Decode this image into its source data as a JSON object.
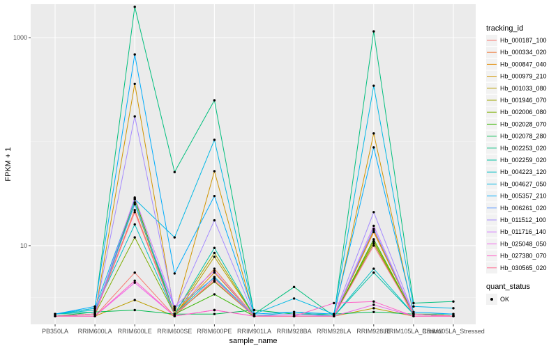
{
  "chart_data": {
    "type": "line",
    "title": "",
    "xlabel": "sample_name",
    "ylabel": "FPKM + 1",
    "y_scale": "log10",
    "ylim": [
      1.75,
      2100
    ],
    "y_ticks": [
      10,
      1000
    ],
    "y_tick_labels": [
      "10",
      "1000"
    ],
    "grid": true,
    "categories": [
      "PB350LA",
      "RRIM600LA",
      "RRIM600LE",
      "RRIM600SE",
      "RRIM600PE",
      "RRIM901LA",
      "RRIM928BA",
      "RRIM928LA",
      "RRIM928LE",
      "RRIM105LA_Control",
      "RRIM105LA_Stressed"
    ],
    "legend": {
      "position": "right",
      "title": "tracking_id",
      "title2": "quant_status",
      "status_label": "OK"
    },
    "series": [
      {
        "name": "Hb_000187_100",
        "color": "#F8766D",
        "values": [
          2.1,
          2.1,
          5.5,
          2.1,
          4.8,
          2.1,
          2.1,
          2.1,
          11.0,
          2.1,
          2.1
        ]
      },
      {
        "name": "Hb_000334_020",
        "color": "#EE8043",
        "values": [
          2.1,
          2.2,
          22.0,
          2.2,
          6.0,
          2.1,
          2.1,
          2.1,
          14.0,
          2.2,
          2.1
        ]
      },
      {
        "name": "Hb_000847_040",
        "color": "#E18A00",
        "values": [
          2.1,
          2.2,
          28.0,
          2.2,
          5.5,
          2.1,
          2.1,
          2.1,
          13.5,
          2.2,
          2.1
        ]
      },
      {
        "name": "Hb_000979_210",
        "color": "#D09400",
        "values": [
          2.1,
          2.2,
          360.0,
          2.2,
          52.0,
          2.1,
          2.1,
          2.1,
          120.0,
          2.2,
          2.1
        ]
      },
      {
        "name": "Hb_001033_080",
        "color": "#BA9E00",
        "values": [
          2.1,
          2.1,
          3.0,
          2.1,
          7.8,
          2.1,
          2.1,
          2.1,
          2.5,
          2.1,
          2.1
        ]
      },
      {
        "name": "Hb_001946_070",
        "color": "#9FA600",
        "values": [
          2.1,
          2.2,
          25.0,
          2.2,
          8.5,
          2.1,
          2.1,
          2.1,
          11.0,
          2.2,
          2.1
        ]
      },
      {
        "name": "Hb_002006_080",
        "color": "#7CAE00",
        "values": [
          2.1,
          2.2,
          12.0,
          2.2,
          4.5,
          2.1,
          2.1,
          2.1,
          10.5,
          2.2,
          2.1
        ]
      },
      {
        "name": "Hb_002028_070",
        "color": "#39B600",
        "values": [
          2.1,
          2.2,
          28.0,
          2.2,
          3.4,
          2.1,
          2.1,
          2.1,
          11.5,
          2.2,
          2.1
        ]
      },
      {
        "name": "Hb_002078_280",
        "color": "#00BB4E",
        "values": [
          2.1,
          2.3,
          2.4,
          2.2,
          2.2,
          2.4,
          2.2,
          2.2,
          2.3,
          2.2,
          2.2
        ]
      },
      {
        "name": "Hb_002253_020",
        "color": "#00BF7D",
        "values": [
          2.2,
          2.5,
          1980.0,
          51.0,
          250.0,
          2.2,
          4.0,
          2.1,
          1150.0,
          2.8,
          2.9
        ]
      },
      {
        "name": "Hb_002259_020",
        "color": "#00C1A3",
        "values": [
          2.2,
          2.3,
          26.0,
          2.2,
          9.5,
          2.1,
          2.1,
          2.1,
          5.5,
          2.2,
          2.1
        ]
      },
      {
        "name": "Hb_004223_120",
        "color": "#00BFC4",
        "values": [
          2.2,
          2.4,
          16.0,
          2.2,
          5.0,
          2.1,
          2.3,
          2.1,
          6.0,
          2.2,
          2.1
        ]
      },
      {
        "name": "Hb_004627_050",
        "color": "#00B8E5",
        "values": [
          2.2,
          2.5,
          28.0,
          12.0,
          104.0,
          2.2,
          3.1,
          2.2,
          345.0,
          2.6,
          2.5
        ]
      },
      {
        "name": "Hb_005357_210",
        "color": "#00ACFC",
        "values": [
          2.2,
          2.6,
          690.0,
          5.4,
          30.0,
          2.2,
          2.3,
          2.2,
          88.0,
          2.3,
          2.2
        ]
      },
      {
        "name": "Hb_006261_020",
        "color": "#619CFF",
        "values": [
          2.1,
          2.2,
          25.0,
          2.5,
          4.9,
          2.1,
          2.1,
          2.1,
          14.5,
          2.2,
          2.1
        ]
      },
      {
        "name": "Hb_011512_100",
        "color": "#A58AFF",
        "values": [
          2.1,
          2.2,
          175.0,
          2.4,
          17.5,
          2.1,
          2.2,
          2.1,
          21.0,
          2.2,
          2.1
        ]
      },
      {
        "name": "Hb_011716_140",
        "color": "#D277FF",
        "values": [
          2.1,
          2.2,
          29.0,
          2.6,
          5.7,
          2.1,
          2.1,
          2.1,
          15.5,
          2.2,
          2.1
        ]
      },
      {
        "name": "Hb_025048_050",
        "color": "#F066EA",
        "values": [
          2.1,
          2.1,
          4.4,
          2.1,
          2.4,
          2.1,
          2.1,
          2.1,
          2.7,
          2.1,
          2.1
        ]
      },
      {
        "name": "Hb_027380_070",
        "color": "#FF61C7",
        "values": [
          2.1,
          2.1,
          4.6,
          2.1,
          2.4,
          2.1,
          2.1,
          2.8,
          2.9,
          2.1,
          2.1
        ]
      },
      {
        "name": "Hb_030565_020",
        "color": "#FF6C91",
        "values": [
          2.1,
          2.2,
          21.0,
          2.2,
          4.6,
          2.1,
          2.1,
          2.1,
          10.0,
          2.2,
          2.1
        ]
      }
    ]
  }
}
